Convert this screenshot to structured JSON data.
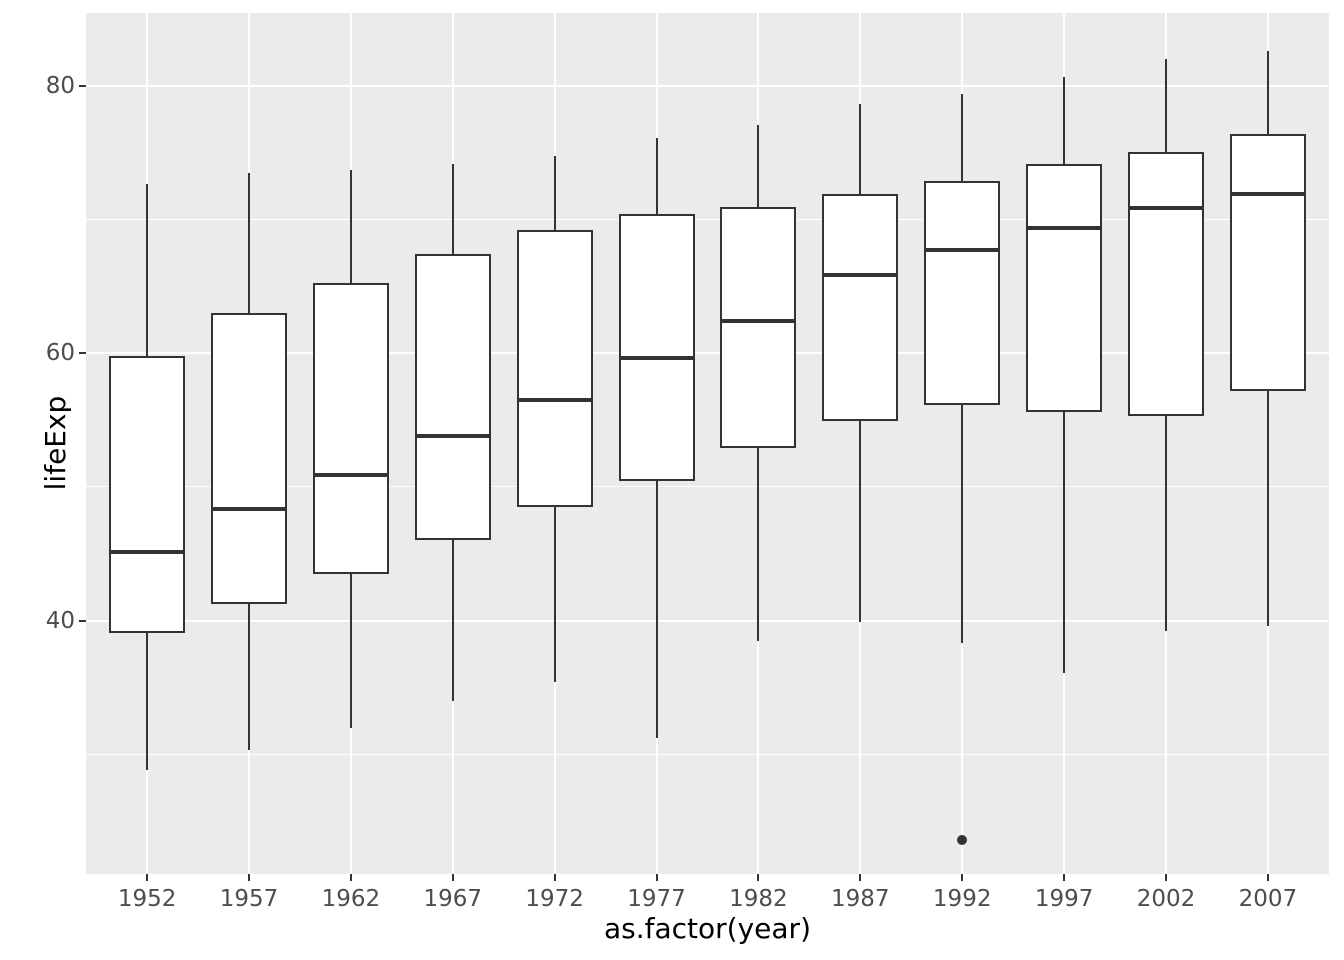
{
  "chart_data": {
    "type": "boxplot",
    "title": "",
    "xlabel": "as.factor(year)",
    "ylabel": "lifeExp",
    "categories": [
      "1952",
      "1957",
      "1962",
      "1967",
      "1972",
      "1977",
      "1982",
      "1987",
      "1992",
      "1997",
      "2002",
      "2007"
    ],
    "series": [
      {
        "year": "1952",
        "whisker_low": 28.8,
        "q1": 39.06,
        "median": 45.14,
        "q3": 59.77,
        "whisker_high": 72.67,
        "outliers": []
      },
      {
        "year": "1957",
        "whisker_low": 30.33,
        "q1": 41.25,
        "median": 48.36,
        "q3": 63.04,
        "whisker_high": 73.47,
        "outliers": []
      },
      {
        "year": "1962",
        "whisker_low": 32.0,
        "q1": 43.47,
        "median": 50.88,
        "q3": 65.23,
        "whisker_high": 73.68,
        "outliers": []
      },
      {
        "year": "1967",
        "whisker_low": 34.02,
        "q1": 46.03,
        "median": 53.83,
        "q3": 67.41,
        "whisker_high": 74.16,
        "outliers": []
      },
      {
        "year": "1972",
        "whisker_low": 35.4,
        "q1": 48.5,
        "median": 56.53,
        "q3": 69.25,
        "whisker_high": 74.72,
        "outliers": []
      },
      {
        "year": "1977",
        "whisker_low": 31.22,
        "q1": 50.48,
        "median": 59.67,
        "q3": 70.38,
        "whisker_high": 76.11,
        "outliers": []
      },
      {
        "year": "1982",
        "whisker_low": 38.44,
        "q1": 52.94,
        "median": 62.44,
        "q3": 70.92,
        "whisker_high": 77.11,
        "outliers": []
      },
      {
        "year": "1987",
        "whisker_low": 39.91,
        "q1": 54.94,
        "median": 65.83,
        "q3": 71.88,
        "whisker_high": 78.67,
        "outliers": []
      },
      {
        "year": "1992",
        "whisker_low": 38.33,
        "q1": 56.12,
        "median": 67.7,
        "q3": 72.85,
        "whisker_high": 79.36,
        "outliers": [
          23.6
        ]
      },
      {
        "year": "1997",
        "whisker_low": 36.09,
        "q1": 55.63,
        "median": 69.39,
        "q3": 74.17,
        "whisker_high": 80.69,
        "outliers": []
      },
      {
        "year": "2002",
        "whisker_low": 39.19,
        "q1": 55.3,
        "median": 70.83,
        "q3": 75.05,
        "whisker_high": 82.0,
        "outliers": []
      },
      {
        "year": "2007",
        "whisker_low": 39.61,
        "q1": 57.16,
        "median": 71.94,
        "q3": 76.41,
        "whisker_high": 82.6,
        "outliers": []
      }
    ],
    "ylim": [
      21.05,
      85.45
    ],
    "yticks_major": [
      40,
      60,
      80
    ],
    "yticks_minor": [
      30,
      50,
      70
    ],
    "grid": "major-and-minor-horizontal, major-vertical-per-category",
    "legend": "none",
    "colors": {
      "panel_background": "#EBEBEB",
      "gridline": "#FFFFFF",
      "box_stroke": "#333333",
      "box_fill": "#FFFFFF",
      "median": "#333333",
      "outlier": "#333333",
      "tick_label": "#4D4D4D",
      "axis_title": "#000000",
      "figure_background": "#FFFFFF"
    }
  }
}
